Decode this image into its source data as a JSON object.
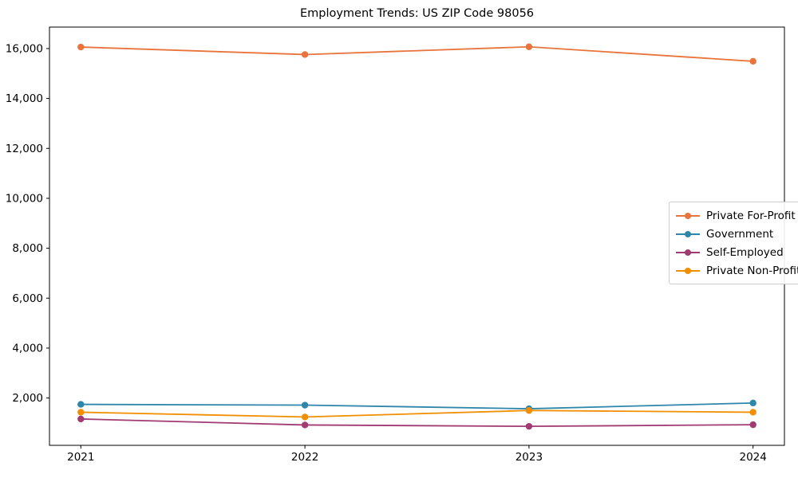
{
  "chart_data": {
    "type": "line",
    "title": "Employment Trends: US ZIP Code 98056",
    "xlabel": "",
    "ylabel": "",
    "x": [
      2021,
      2022,
      2023,
      2024
    ],
    "xtick_labels": [
      "2021",
      "2022",
      "2023",
      "2024"
    ],
    "series": [
      {
        "name": "Private For-Profit",
        "color": "#E8743B",
        "values": [
          16060,
          15760,
          16070,
          15490
        ]
      },
      {
        "name": "Government",
        "color": "#2E86AB",
        "values": [
          1745,
          1715,
          1570,
          1800
        ]
      },
      {
        "name": "Self-Employed",
        "color": "#A23B72",
        "values": [
          1160,
          920,
          865,
          930
        ]
      },
      {
        "name": "Private Non-Profit",
        "color": "#F18F01",
        "values": [
          1430,
          1240,
          1500,
          1430
        ]
      }
    ],
    "yticks": [
      2000,
      4000,
      6000,
      8000,
      10000,
      12000,
      14000,
      16000
    ],
    "ytick_labels": [
      "2,000",
      "4,000",
      "6,000",
      "8,000",
      "10,000",
      "12,000",
      "14,000",
      "16,000"
    ],
    "xlim": [
      2020.86,
      2024.14
    ],
    "ylim": [
      104,
      16860
    ],
    "grid": false,
    "legend_position": "center right",
    "marker": "o",
    "axis_color": "#000000",
    "background_color": "#ffffff"
  }
}
